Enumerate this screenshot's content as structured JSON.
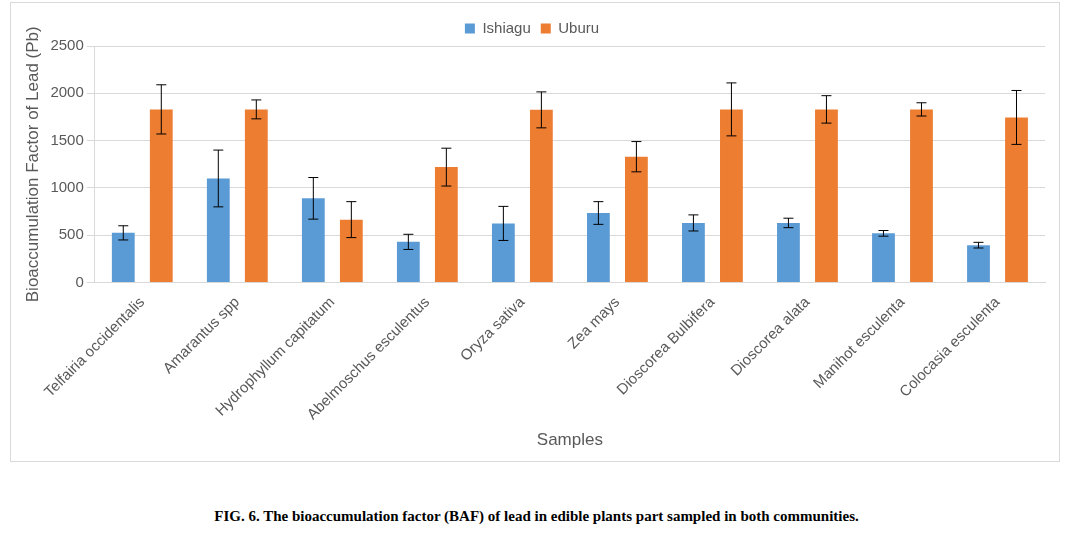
{
  "chart_data": {
    "type": "bar",
    "caption": "FIG. 6. The bioaccumulation factor (BAF) of lead in edible plants part sampled in both communities.",
    "x_label": "Samples",
    "y_label": "Bioaccumulation Factor of Lead (Pb)",
    "categories": [
      "Telfairia occidentalis",
      "Amarantus spp",
      "Hydrophyllum capitatum",
      "Abelmoschus esculentus",
      "Oryza sativa",
      "Zea mays",
      "Dioscorea Bulbifera",
      "Dioscorea alata",
      "Manihot esculenta",
      "Colocasia esculenta"
    ],
    "series": [
      {
        "name": "Ishiagu",
        "color": "#5b9bd5",
        "values": [
          525,
          1100,
          890,
          430,
          625,
          735,
          630,
          630,
          520,
          395
        ],
        "errors": [
          75,
          300,
          220,
          80,
          180,
          120,
          85,
          50,
          30,
          30
        ]
      },
      {
        "name": "Uburu",
        "color": "#ed7d31",
        "values": [
          1830,
          1830,
          665,
          1220,
          1825,
          1330,
          1830,
          1830,
          1830,
          1745
        ],
        "errors": [
          260,
          100,
          190,
          200,
          190,
          160,
          280,
          145,
          70,
          285
        ]
      }
    ],
    "ylim": [
      0,
      2500
    ],
    "yticks": [
      0,
      500,
      1000,
      1500,
      2000,
      2500
    ],
    "grid": true,
    "legend": "top"
  }
}
